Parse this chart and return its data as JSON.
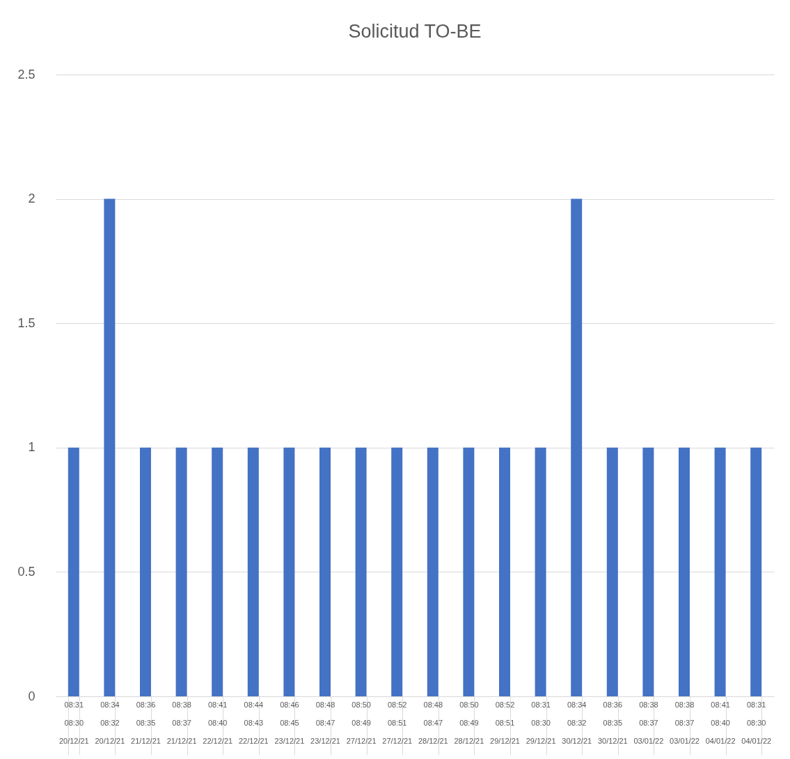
{
  "chart_data": {
    "type": "bar",
    "title": "Solicitud TO-BE",
    "categories": [
      "08:31\n08:30\n20/12/21",
      "08:34\n08:32\n20/12/21",
      "08:36\n08:35\n21/12/21",
      "08:38\n08:37\n21/12/21",
      "08:41\n08:40\n22/12/21",
      "08:44\n08:43\n22/12/21",
      "08:46\n08:45\n23/12/21",
      "08:48\n08:47\n23/12/21",
      "08:50\n08:49\n27/12/21",
      "08:52\n08:51\n27/12/21",
      "08:48\n08:47\n28/12/21",
      "08:50\n08:49\n28/12/21",
      "08:52\n08:51\n29/12/21",
      "08:31\n08:30\n29/12/21",
      "08:34\n08:32\n30/12/21",
      "08:36\n08:35\n30/12/21",
      "08:38\n08:37\n03/01/22",
      "08:38\n08:37\n03/01/22",
      "08:41\n08:40\n04/01/22",
      "08:31\n08:30\n04/01/22"
    ],
    "values": [
      1,
      2,
      1,
      1,
      1,
      1,
      1,
      1,
      1,
      1,
      1,
      1,
      1,
      1,
      2,
      1,
      1,
      1,
      1,
      1
    ],
    "color": "#4472c4",
    "ylim": [
      0,
      2.5
    ],
    "yticks": [
      0,
      0.5,
      1,
      1.5,
      2,
      2.5
    ],
    "grid": "y"
  }
}
